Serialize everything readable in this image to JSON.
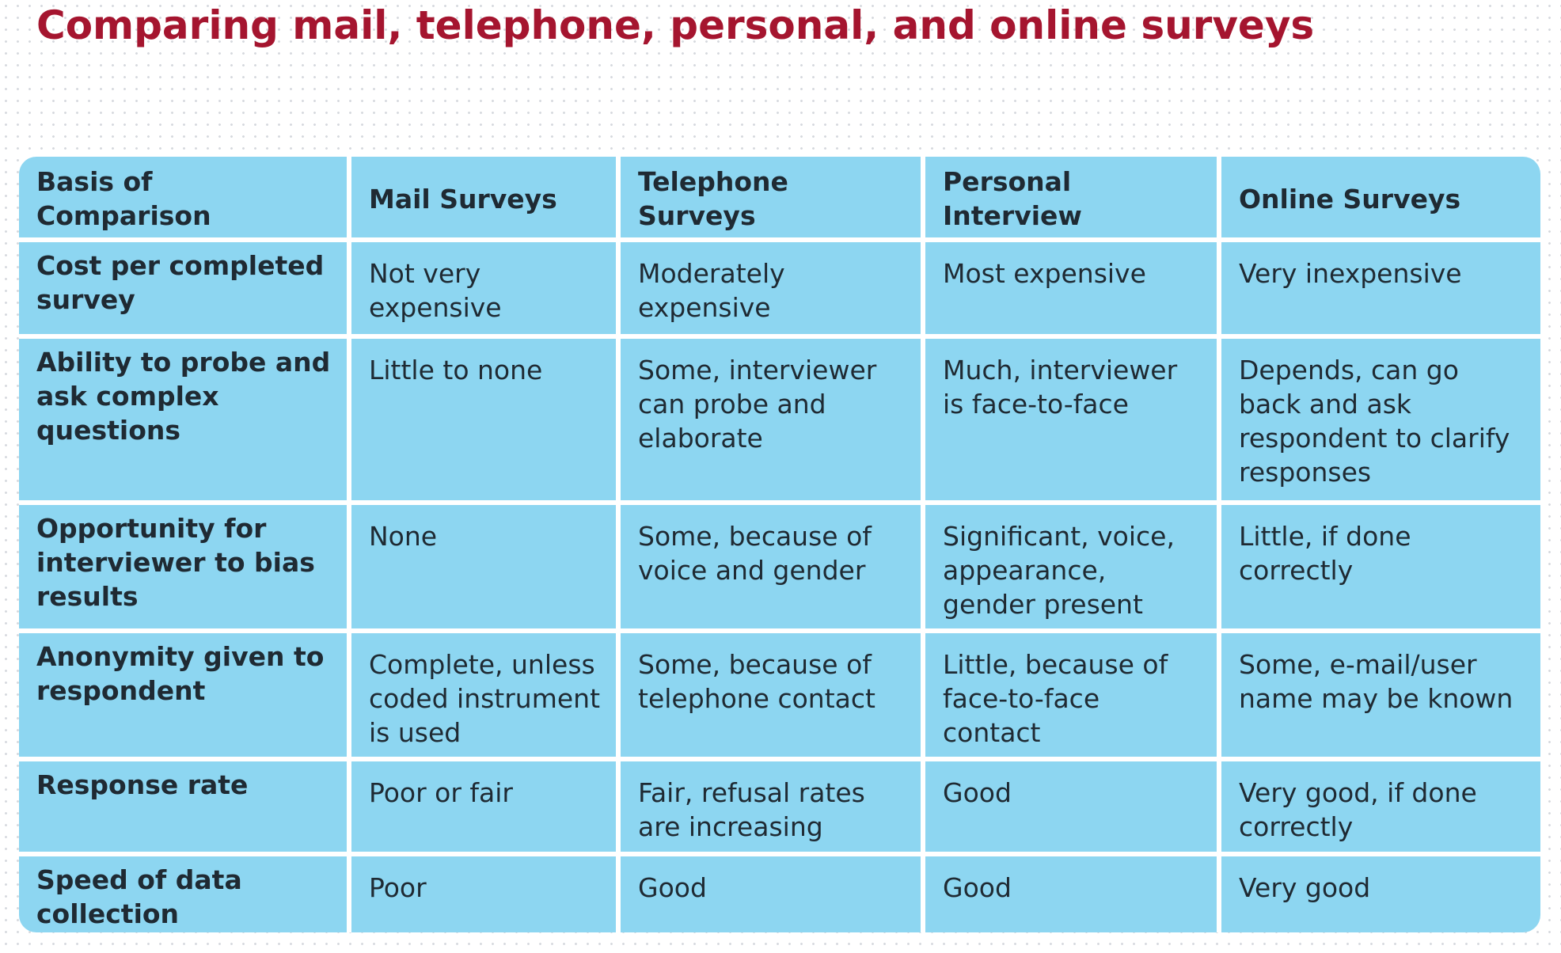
{
  "title": "Comparing mail, telephone, personal, and online surveys",
  "table": {
    "headers": [
      "Basis of Comparison",
      "Mail Surveys",
      "Telephone Surveys",
      "Personal Interview",
      "Online Surveys"
    ],
    "rows": [
      {
        "basis": "Cost per completed survey",
        "mail": "Not very expensive",
        "telephone": "Moderately expensive",
        "personal": "Most expensive",
        "online": "Very inexpensive"
      },
      {
        "basis": "Ability to probe and ask complex questions",
        "mail": "Little to none",
        "telephone": "Some, interviewer can probe and elaborate",
        "personal": "Much, interviewer is face-to-face",
        "online": "Depends, can go back and ask respondent to clarify responses"
      },
      {
        "basis": "Opportunity for interviewer to bias results",
        "mail": "None",
        "telephone": "Some, because of voice and gender",
        "personal": "Significant, voice, appearance, gender present",
        "online": "Little, if done correctly"
      },
      {
        "basis": "Anonymity given to respondent",
        "mail": "Complete, unless coded instrument is used",
        "telephone": "Some, because of telephone contact",
        "personal": "Little, because of face-to-face contact",
        "online": "Some, e-mail/user name may be known"
      },
      {
        "basis": "Response rate",
        "mail": "Poor or fair",
        "telephone": "Fair, refusal rates are increasing",
        "personal": "Good",
        "online": "Very good, if done correctly"
      },
      {
        "basis": "Speed of data collection",
        "mail": "Poor",
        "telephone": "Good",
        "personal": "Good",
        "online": "Very good"
      }
    ]
  },
  "colors": {
    "title": "#a5152f",
    "cell_fill": "#8dd6f1",
    "grid_lines": "#ffffff",
    "text": "#1f2a33"
  }
}
